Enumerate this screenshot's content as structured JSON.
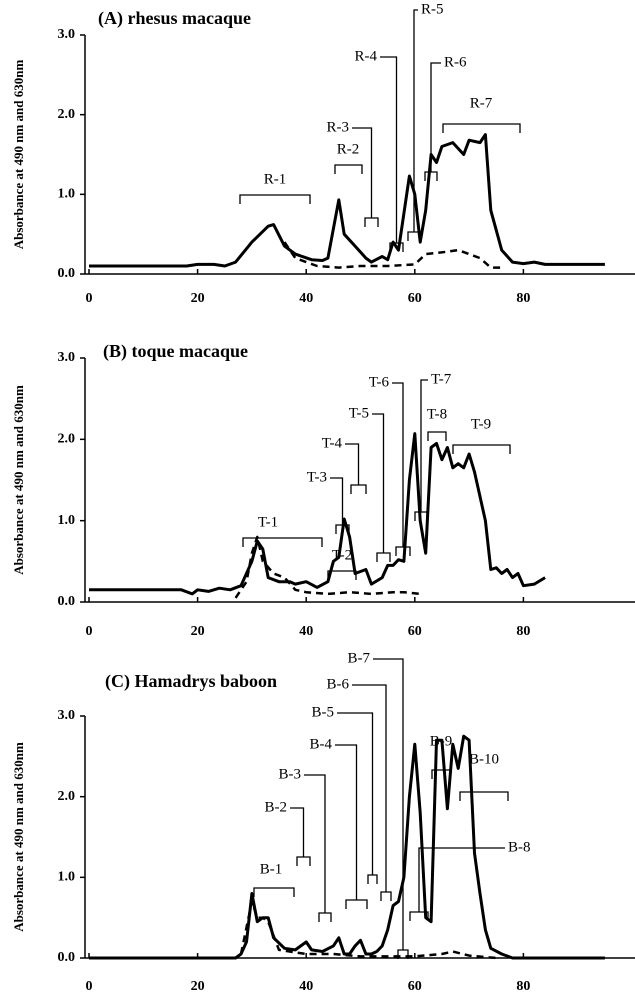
{
  "chart_data": [
    {
      "type": "line",
      "title": "(A) rhesus macaque",
      "y_label": "Absorbance at 490 nm and 630nm",
      "xlim": [
        0,
        100
      ],
      "xticks": [
        0,
        20,
        40,
        60,
        80
      ],
      "ylim": [
        0,
        3
      ],
      "yticks": [
        {
          "value": 0,
          "label": "0.0"
        },
        {
          "value": 1,
          "label": "1.0"
        },
        {
          "value": 2,
          "label": "2.0"
        },
        {
          "value": 3,
          "label": "3.0"
        }
      ],
      "series": [
        {
          "color": "#000000",
          "dashed": false,
          "x": [
            0,
            18,
            20,
            23,
            25,
            27,
            30,
            33,
            34,
            36,
            38,
            41,
            43,
            44,
            46,
            47,
            49,
            51,
            52,
            54,
            55,
            56,
            57,
            59,
            60,
            61,
            62,
            63,
            64,
            65,
            67,
            69,
            70,
            72,
            73,
            74,
            76,
            78,
            80,
            82,
            84,
            95
          ],
          "values": [
            0.1,
            0.1,
            0.12,
            0.12,
            0.1,
            0.15,
            0.4,
            0.6,
            0.62,
            0.35,
            0.25,
            0.18,
            0.17,
            0.2,
            0.93,
            0.5,
            0.35,
            0.2,
            0.15,
            0.22,
            0.18,
            0.4,
            0.3,
            1.23,
            1.0,
            0.4,
            0.8,
            1.5,
            1.4,
            1.6,
            1.65,
            1.5,
            1.68,
            1.65,
            1.75,
            0.8,
            0.3,
            0.15,
            0.13,
            0.15,
            0.12,
            0.12
          ]
        },
        {
          "color": "#000000",
          "dashed": true,
          "x": [
            36,
            38,
            40,
            42,
            46,
            50,
            55,
            60,
            62,
            66,
            68,
            70,
            72,
            74,
            76
          ],
          "values": [
            0.4,
            0.2,
            0.15,
            0.1,
            0.08,
            0.1,
            0.1,
            0.12,
            0.25,
            0.28,
            0.3,
            0.25,
            0.2,
            0.08,
            0.08
          ]
        }
      ],
      "annotations": [
        "R-1",
        "R-2",
        "R-3",
        "R-4",
        "R-5",
        "R-6",
        "R-7"
      ]
    },
    {
      "type": "line",
      "title": "(B) toque macaque",
      "y_label": "Absorbance at 490 nm and 630nm",
      "xlim": [
        0,
        100
      ],
      "xticks": [
        0,
        20,
        40,
        60,
        80
      ],
      "ylim": [
        0,
        3
      ],
      "yticks": [
        {
          "value": 0,
          "label": "0.0"
        },
        {
          "value": 1,
          "label": "1.0"
        },
        {
          "value": 2,
          "label": "2.0"
        },
        {
          "value": 3,
          "label": "3.0"
        }
      ],
      "series": [
        {
          "color": "#000000",
          "dashed": false,
          "x": [
            0,
            17,
            19,
            20,
            22,
            24,
            26,
            28,
            30,
            31,
            32,
            33,
            35,
            37,
            38,
            40,
            42,
            44,
            45,
            46,
            47,
            48,
            49,
            51,
            52,
            54,
            55,
            56,
            57,
            58,
            59,
            60,
            61,
            62,
            63,
            64,
            65,
            66,
            67,
            68,
            69,
            70,
            71,
            73,
            74,
            75,
            76,
            77,
            78,
            79,
            80,
            82,
            84
          ],
          "values": [
            0.15,
            0.15,
            0.1,
            0.15,
            0.13,
            0.17,
            0.15,
            0.2,
            0.5,
            0.75,
            0.65,
            0.3,
            0.25,
            0.25,
            0.22,
            0.25,
            0.18,
            0.25,
            0.5,
            0.55,
            1.02,
            0.8,
            0.35,
            0.4,
            0.22,
            0.3,
            0.45,
            0.45,
            0.52,
            0.5,
            1.5,
            2.07,
            1.0,
            0.6,
            1.9,
            1.95,
            1.75,
            1.9,
            1.65,
            1.7,
            1.65,
            1.82,
            1.6,
            1.0,
            0.4,
            0.42,
            0.35,
            0.4,
            0.3,
            0.35,
            0.2,
            0.22,
            0.3
          ]
        },
        {
          "color": "#000000",
          "dashed": true,
          "x": [
            27,
            29,
            30,
            31,
            32,
            34,
            36,
            38,
            40,
            44,
            48,
            52,
            56,
            58,
            61
          ],
          "values": [
            0.05,
            0.25,
            0.6,
            0.8,
            0.5,
            0.35,
            0.3,
            0.15,
            0.12,
            0.1,
            0.12,
            0.1,
            0.12,
            0.12,
            0.1
          ]
        }
      ],
      "annotations": [
        "T-1",
        "T-2",
        "T-3",
        "T-4",
        "T-5",
        "T-6",
        "T-7",
        "T-8",
        "T-9"
      ]
    },
    {
      "type": "line",
      "title": "(C) Hamadrys baboon",
      "y_label": "Absorbance at 490 nm and 630nm",
      "xlim": [
        0,
        100
      ],
      "xticks": [
        0,
        20,
        40,
        60,
        80
      ],
      "ylim": [
        0,
        3
      ],
      "yticks": [
        {
          "value": 0,
          "label": "0.0"
        },
        {
          "value": 1,
          "label": "1.0"
        },
        {
          "value": 2,
          "label": "2.0"
        },
        {
          "value": 3,
          "label": "3.0"
        }
      ],
      "series": [
        {
          "color": "#000000",
          "dashed": false,
          "x": [
            0,
            27,
            28,
            29,
            30,
            31,
            32,
            33,
            34,
            36,
            38,
            39,
            40,
            41,
            43,
            45,
            46,
            47,
            48,
            49,
            50,
            51,
            52,
            53,
            54,
            55,
            56,
            57,
            58,
            59,
            60,
            61,
            62,
            63,
            64,
            65,
            66,
            67,
            68,
            69,
            70,
            71,
            72,
            73,
            74,
            76,
            78,
            95
          ],
          "values": [
            0,
            0,
            0.05,
            0.2,
            0.8,
            0.45,
            0.5,
            0.5,
            0.25,
            0.12,
            0.1,
            0.15,
            0.2,
            0.1,
            0.08,
            0.15,
            0.25,
            0.05,
            0.05,
            0.15,
            0.22,
            0.05,
            0.05,
            0.08,
            0.15,
            0.35,
            0.65,
            0.7,
            1.0,
            2.0,
            2.65,
            1.8,
            0.5,
            0.45,
            2.7,
            2.7,
            1.85,
            2.65,
            2.35,
            2.75,
            2.7,
            1.3,
            0.8,
            0.35,
            0.12,
            0.05,
            0,
            0
          ]
        },
        {
          "color": "#000000",
          "dashed": true,
          "x": [
            28,
            30,
            31,
            32,
            33,
            35,
            40,
            45,
            50,
            60,
            65,
            67,
            70,
            75
          ],
          "values": [
            0.05,
            0.7,
            0.5,
            0.5,
            0.45,
            0.1,
            0.05,
            0.05,
            0.02,
            0.02,
            0.05,
            0.08,
            0.03,
            0
          ]
        }
      ],
      "annotations": [
        "B-1",
        "B-2",
        "B-3",
        "B-4",
        "B-5",
        "B-6",
        "B-7",
        "B-8",
        "B-9",
        "B-10"
      ]
    }
  ]
}
